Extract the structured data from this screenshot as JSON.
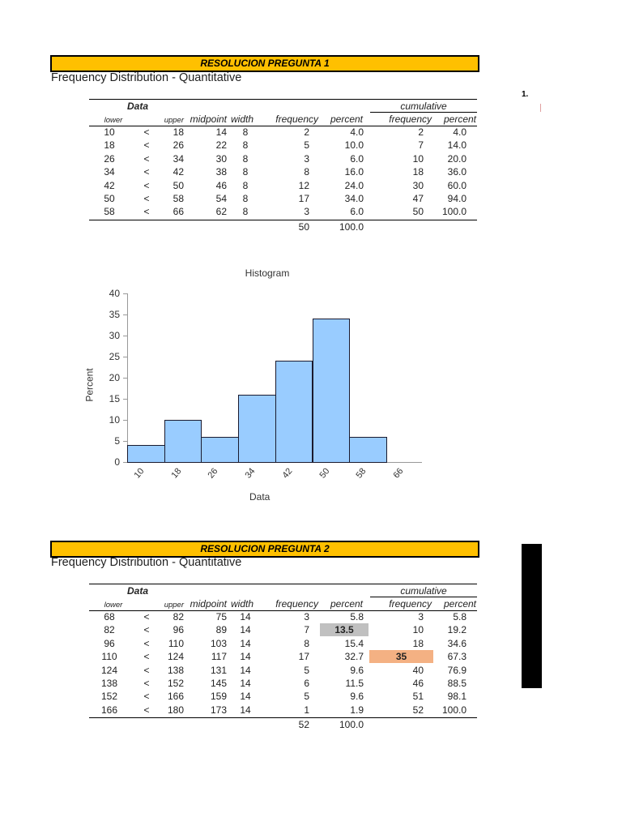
{
  "sections": [
    {
      "banner": "RESOLUCION PREGUNTA 1",
      "subtitle": "Frequency Distribution - Quantitative",
      "headers": {
        "group_data": "Data",
        "group_cumulative": "cumulative",
        "lower": "lower",
        "upper": "upper",
        "midpoint": "midpoint",
        "width": "width",
        "frequency": "frequency",
        "percent": "percent",
        "cum_frequency": "frequency",
        "cum_percent": "percent"
      },
      "rows": [
        {
          "lower": "10",
          "sep": "<",
          "upper": "18",
          "midpoint": "14",
          "width": "8",
          "frequency": "2",
          "percent": "4.0",
          "cum_frequency": "2",
          "cum_percent": "4.0"
        },
        {
          "lower": "18",
          "sep": "<",
          "upper": "26",
          "midpoint": "22",
          "width": "8",
          "frequency": "5",
          "percent": "10.0",
          "cum_frequency": "7",
          "cum_percent": "14.0"
        },
        {
          "lower": "26",
          "sep": "<",
          "upper": "34",
          "midpoint": "30",
          "width": "8",
          "frequency": "3",
          "percent": "6.0",
          "cum_frequency": "10",
          "cum_percent": "20.0"
        },
        {
          "lower": "34",
          "sep": "<",
          "upper": "42",
          "midpoint": "38",
          "width": "8",
          "frequency": "8",
          "percent": "16.0",
          "cum_frequency": "18",
          "cum_percent": "36.0"
        },
        {
          "lower": "42",
          "sep": "<",
          "upper": "50",
          "midpoint": "46",
          "width": "8",
          "frequency": "12",
          "percent": "24.0",
          "cum_frequency": "30",
          "cum_percent": "60.0"
        },
        {
          "lower": "50",
          "sep": "<",
          "upper": "58",
          "midpoint": "54",
          "width": "8",
          "frequency": "17",
          "percent": "34.0",
          "cum_frequency": "47",
          "cum_percent": "94.0"
        },
        {
          "lower": "58",
          "sep": "<",
          "upper": "66",
          "midpoint": "62",
          "width": "8",
          "frequency": "3",
          "percent": "6.0",
          "cum_frequency": "50",
          "cum_percent": "100.0"
        }
      ],
      "totals": {
        "frequency": "50",
        "percent": "100.0"
      }
    },
    {
      "banner": "RESOLUCION PREGUNTA 2",
      "subtitle": "Frequency Distribution - Quantitative",
      "headers": {
        "group_data": "Data",
        "group_cumulative": "cumulative",
        "lower": "lower",
        "upper": "upper",
        "midpoint": "midpoint",
        "width": "width",
        "frequency": "frequency",
        "percent": "percent",
        "cum_frequency": "frequency",
        "cum_percent": "percent"
      },
      "rows": [
        {
          "lower": "68",
          "sep": "<",
          "upper": "82",
          "midpoint": "75",
          "width": "14",
          "frequency": "3",
          "percent": "5.8",
          "cum_frequency": "3",
          "cum_percent": "5.8"
        },
        {
          "lower": "82",
          "sep": "<",
          "upper": "96",
          "midpoint": "89",
          "width": "14",
          "frequency": "7",
          "percent": "13.5",
          "cum_frequency": "10",
          "cum_percent": "19.2"
        },
        {
          "lower": "96",
          "sep": "<",
          "upper": "110",
          "midpoint": "103",
          "width": "14",
          "frequency": "8",
          "percent": "15.4",
          "cum_frequency": "18",
          "cum_percent": "34.6"
        },
        {
          "lower": "110",
          "sep": "<",
          "upper": "124",
          "midpoint": "117",
          "width": "14",
          "frequency": "17",
          "percent": "32.7",
          "cum_frequency": "35",
          "cum_percent": "67.3"
        },
        {
          "lower": "124",
          "sep": "<",
          "upper": "138",
          "midpoint": "131",
          "width": "14",
          "frequency": "5",
          "percent": "9.6",
          "cum_frequency": "40",
          "cum_percent": "76.9"
        },
        {
          "lower": "138",
          "sep": "<",
          "upper": "152",
          "midpoint": "145",
          "width": "14",
          "frequency": "6",
          "percent": "11.5",
          "cum_frequency": "46",
          "cum_percent": "88.5"
        },
        {
          "lower": "152",
          "sep": "<",
          "upper": "166",
          "midpoint": "159",
          "width": "14",
          "frequency": "5",
          "percent": "9.6",
          "cum_frequency": "51",
          "cum_percent": "98.1"
        },
        {
          "lower": "166",
          "sep": "<",
          "upper": "180",
          "midpoint": "173",
          "width": "14",
          "frequency": "1",
          "percent": "1.9",
          "cum_frequency": "52",
          "cum_percent": "100.0"
        }
      ],
      "totals": {
        "frequency": "52",
        "percent": "100.0"
      },
      "highlights": [
        {
          "row": 1,
          "column": "percent",
          "color": "#c0c0c0"
        },
        {
          "row": 3,
          "column": "cum_frequency",
          "color": "#f4b183"
        }
      ]
    }
  ],
  "side": {
    "list_marker": "1."
  },
  "colors": {
    "banner": "#ffc000",
    "bar_fill": "#99ccff",
    "highlight_gray": "#c0c0c0",
    "highlight_orange": "#f4b183"
  },
  "chart_data": {
    "type": "bar",
    "title": "Histogram",
    "xlabel": "Data",
    "ylabel": "Percent",
    "categories": [
      "10",
      "18",
      "26",
      "34",
      "42",
      "50",
      "58"
    ],
    "x_tick_labels": [
      "10",
      "18",
      "26",
      "34",
      "42",
      "50",
      "58",
      "66"
    ],
    "values": [
      4.0,
      10.0,
      6.0,
      16.0,
      24.0,
      34.0,
      6.0
    ],
    "y_ticks": [
      "0",
      "5",
      "10",
      "15",
      "20",
      "25",
      "30",
      "35",
      "40"
    ],
    "ylim": [
      0,
      40
    ],
    "grid": false,
    "legend": null
  }
}
